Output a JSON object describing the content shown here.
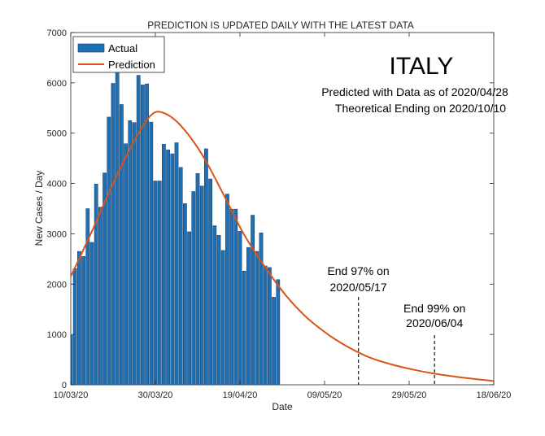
{
  "chart_data": {
    "type": "bar",
    "title": "PREDICTION IS UPDATED DAILY WITH THE LATEST DATA",
    "xlabel": "Date",
    "ylabel": "New Cases / Day",
    "ylim": [
      0,
      7000
    ],
    "yticks": [
      0,
      1000,
      2000,
      3000,
      4000,
      5000,
      6000,
      7000
    ],
    "xrange": [
      "2020-03-10",
      "2020-06-18"
    ],
    "xticks": [
      {
        "date": "2020-03-10",
        "label": "10/03/20"
      },
      {
        "date": "2020-03-30",
        "label": "30/03/20"
      },
      {
        "date": "2020-04-19",
        "label": "19/04/20"
      },
      {
        "date": "2020-05-09",
        "label": "09/05/20"
      },
      {
        "date": "2020-05-29",
        "label": "29/05/20"
      },
      {
        "date": "2020-06-18",
        "label": "18/06/20"
      }
    ],
    "grid": false,
    "legend": {
      "placement": "top-left",
      "entries": [
        {
          "name": "Actual",
          "color": "#1f6fb4"
        },
        {
          "name": "Prediction",
          "color": "#d95319"
        }
      ]
    },
    "series": [
      {
        "name": "Actual",
        "kind": "bar",
        "color": "#1f6fb4",
        "x": [
          "2020-03-10",
          "2020-03-11",
          "2020-03-12",
          "2020-03-13",
          "2020-03-14",
          "2020-03-15",
          "2020-03-16",
          "2020-03-17",
          "2020-03-18",
          "2020-03-19",
          "2020-03-20",
          "2020-03-21",
          "2020-03-22",
          "2020-03-23",
          "2020-03-24",
          "2020-03-25",
          "2020-03-26",
          "2020-03-27",
          "2020-03-28",
          "2020-03-29",
          "2020-03-30",
          "2020-03-31",
          "2020-04-01",
          "2020-04-02",
          "2020-04-03",
          "2020-04-04",
          "2020-04-05",
          "2020-04-06",
          "2020-04-07",
          "2020-04-08",
          "2020-04-09",
          "2020-04-10",
          "2020-04-11",
          "2020-04-12",
          "2020-04-13",
          "2020-04-14",
          "2020-04-15",
          "2020-04-16",
          "2020-04-17",
          "2020-04-18",
          "2020-04-19",
          "2020-04-20",
          "2020-04-21",
          "2020-04-22",
          "2020-04-23",
          "2020-04-24",
          "2020-04-25",
          "2020-04-26",
          "2020-04-27",
          "2020-04-28"
        ],
        "values": [
          980,
          2310,
          2650,
          2550,
          3500,
          2830,
          3990,
          3530,
          4210,
          5320,
          5990,
          6200,
          5570,
          4790,
          5250,
          5210,
          6150,
          5960,
          5980,
          5220,
          4050,
          4050,
          4780,
          4670,
          4590,
          4810,
          4320,
          3600,
          3040,
          3840,
          4200,
          3950,
          4690,
          4090,
          3160,
          2970,
          2670,
          3790,
          3490,
          3490,
          3050,
          2260,
          2730,
          3370,
          2650,
          3020,
          2360,
          2330,
          1740,
          2090
        ]
      },
      {
        "name": "Prediction",
        "kind": "line",
        "color": "#d95319",
        "x": [
          "2020-03-10",
          "2020-03-15",
          "2020-03-20",
          "2020-03-25",
          "2020-03-29",
          "2020-04-01",
          "2020-04-05",
          "2020-04-10",
          "2020-04-15",
          "2020-04-20",
          "2020-04-25",
          "2020-04-30",
          "2020-05-05",
          "2020-05-10",
          "2020-05-15",
          "2020-05-20",
          "2020-05-25",
          "2020-05-30",
          "2020-06-04",
          "2020-06-09",
          "2020-06-14",
          "2020-06-18"
        ],
        "values": [
          2150,
          3050,
          4000,
          4850,
          5360,
          5400,
          5150,
          4580,
          3800,
          2980,
          2330,
          1760,
          1320,
          990,
          730,
          530,
          400,
          300,
          220,
          160,
          110,
          75
        ]
      }
    ],
    "annotations": [
      {
        "id": "country",
        "text": "ITALY"
      },
      {
        "id": "data-as-of",
        "text": "Predicted with Data as of 2020/04/28"
      },
      {
        "id": "theoretical-ending",
        "text": "Theoretical Ending on 2020/10/10"
      }
    ],
    "markers": [
      {
        "date": "2020-05-17",
        "line1": "End 97% on",
        "line2": "2020/05/17"
      },
      {
        "date": "2020-06-04",
        "line1": "End 99% on",
        "line2": "2020/06/04"
      }
    ]
  }
}
